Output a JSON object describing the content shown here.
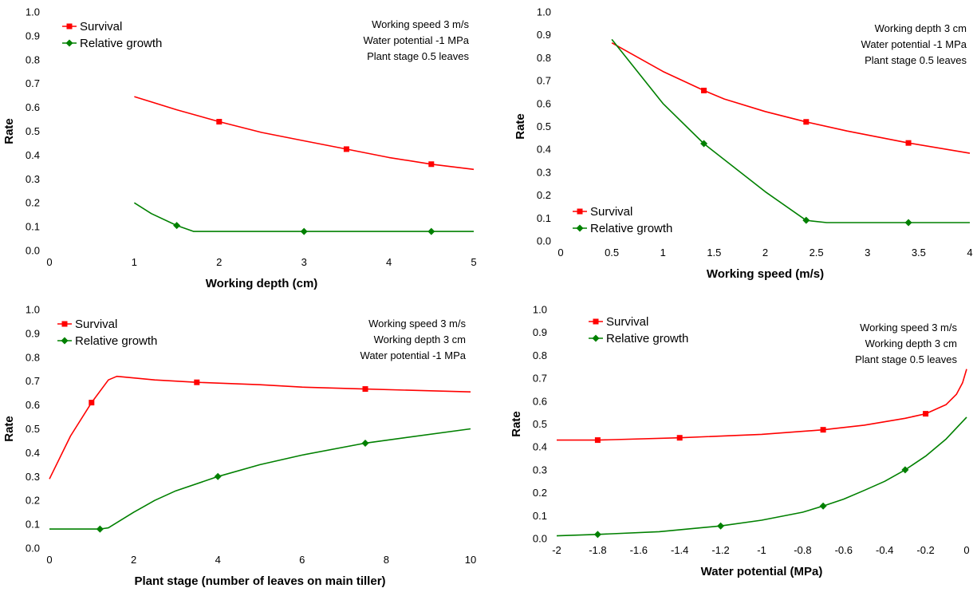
{
  "chart_data": [
    {
      "type": "line",
      "xlabel": "Working depth (cm)",
      "ylabel": "Rate",
      "xlim": [
        0,
        5
      ],
      "ylim": [
        0,
        1.0
      ],
      "xticks": [
        "0",
        "1",
        "2",
        "3",
        "4",
        "5"
      ],
      "yticks": [
        "0.0",
        "0.1",
        "0.2",
        "0.3",
        "0.4",
        "0.5",
        "0.6",
        "0.7",
        "0.8",
        "0.9",
        "1.0"
      ],
      "grid": false,
      "legend_position": "top-left",
      "annotations": [
        "Working speed 3 m/s",
        "Water potential -1 MPa",
        "Plant stage 0.5 leaves"
      ],
      "series": [
        {
          "name": "Survival",
          "color": "#ff0000",
          "marker": "square",
          "x": [
            1,
            1.5,
            2,
            2.5,
            3,
            3.5,
            4,
            4.5,
            5
          ],
          "y": [
            0.645,
            0.59,
            0.54,
            0.495,
            0.46,
            0.425,
            0.39,
            0.362,
            0.34
          ],
          "markers": [
            [
              2,
              0.54
            ],
            [
              3.5,
              0.425
            ],
            [
              4.5,
              0.362
            ]
          ]
        },
        {
          "name": "Relative growth",
          "color": "#008000",
          "marker": "diamond",
          "x": [
            1,
            1.2,
            1.5,
            1.7,
            5
          ],
          "y": [
            0.2,
            0.155,
            0.105,
            0.08,
            0.08
          ],
          "markers": [
            [
              1.5,
              0.105
            ],
            [
              3,
              0.08
            ],
            [
              4.5,
              0.08
            ]
          ]
        }
      ]
    },
    {
      "type": "line",
      "xlabel": "Working speed (m/s)",
      "ylabel": "Rate",
      "xlim": [
        0,
        4
      ],
      "ylim": [
        0,
        1.0
      ],
      "xticks": [
        "0",
        "0.5",
        "1",
        "1.5",
        "2",
        "2.5",
        "3",
        "3.5",
        "4"
      ],
      "yticks": [
        "0.0",
        "0.1",
        "0.2",
        "0.3",
        "0.4",
        "0.5",
        "0.6",
        "0.7",
        "0.8",
        "0.9",
        "1.0"
      ],
      "grid": false,
      "legend_position": "bottom-left",
      "annotations": [
        "Working depth 3 cm",
        "Water potential -1 MPa",
        "Plant stage 0.5 leaves"
      ],
      "series": [
        {
          "name": "Survival",
          "color": "#ff0000",
          "marker": "square",
          "x": [
            0.5,
            1,
            1.4,
            1.6,
            2,
            2.4,
            2.8,
            3.4,
            4
          ],
          "y": [
            0.865,
            0.74,
            0.657,
            0.62,
            0.565,
            0.52,
            0.48,
            0.428,
            0.383
          ],
          "markers": [
            [
              1.4,
              0.657
            ],
            [
              2.4,
              0.52
            ],
            [
              3.4,
              0.428
            ]
          ]
        },
        {
          "name": "Relative growth",
          "color": "#008000",
          "marker": "diamond",
          "x": [
            0.5,
            1,
            1.4,
            2,
            2.4,
            2.6,
            4
          ],
          "y": [
            0.88,
            0.6,
            0.425,
            0.215,
            0.09,
            0.08,
            0.08
          ],
          "markers": [
            [
              1.4,
              0.425
            ],
            [
              2.4,
              0.09
            ],
            [
              3.4,
              0.08
            ]
          ]
        }
      ]
    },
    {
      "type": "line",
      "xlabel": "Plant stage (number of leaves on main tiller)",
      "ylabel": "Rate",
      "xlim": [
        0,
        10
      ],
      "ylim": [
        0,
        1.0
      ],
      "xticks": [
        "0",
        "2",
        "4",
        "6",
        "8",
        "10"
      ],
      "yticks": [
        "0.0",
        "0.1",
        "0.2",
        "0.3",
        "0.4",
        "0.5",
        "0.6",
        "0.7",
        "0.8",
        "0.9",
        "1.0"
      ],
      "grid": false,
      "legend_position": "top-left",
      "annotations": [
        "Working speed 3 m/s",
        "Working depth 3 cm",
        "Water potential -1 MPa"
      ],
      "series": [
        {
          "name": "Survival",
          "color": "#ff0000",
          "marker": "square",
          "x": [
            0,
            0.5,
            1,
            1.4,
            1.6,
            2.5,
            3.5,
            5,
            6,
            7.5,
            10
          ],
          "y": [
            0.29,
            0.47,
            0.61,
            0.705,
            0.72,
            0.705,
            0.695,
            0.685,
            0.675,
            0.667,
            0.655
          ],
          "markers": [
            [
              1,
              0.61
            ],
            [
              3.5,
              0.695
            ],
            [
              7.5,
              0.667
            ]
          ]
        },
        {
          "name": "Relative growth",
          "color": "#008000",
          "marker": "diamond",
          "x": [
            0,
            1.2,
            1.4,
            2,
            2.5,
            3,
            4,
            5,
            6,
            7.5,
            10
          ],
          "y": [
            0.08,
            0.08,
            0.085,
            0.15,
            0.2,
            0.24,
            0.3,
            0.35,
            0.39,
            0.44,
            0.5
          ],
          "markers": [
            [
              1.2,
              0.08
            ],
            [
              4,
              0.3
            ],
            [
              7.5,
              0.44
            ]
          ]
        }
      ]
    },
    {
      "type": "line",
      "xlabel": "Water potential (MPa)",
      "ylabel": "Rate",
      "xlim": [
        -2,
        0
      ],
      "ylim": [
        0,
        1.0
      ],
      "xticks": [
        "-2",
        "-1.8",
        "-1.6",
        "-1.4",
        "-1.2",
        "-1",
        "-0.8",
        "-0.6",
        "-0.4",
        "-0.2",
        "0"
      ],
      "yticks": [
        "0.0",
        "0.1",
        "0.2",
        "0.3",
        "0.4",
        "0.5",
        "0.6",
        "0.7",
        "0.8",
        "0.9",
        "1.0"
      ],
      "grid": false,
      "legend_position": "top-left",
      "annotations": [
        "Working speed 3 m/s",
        "Working depth 3 cm",
        "Plant stage 0.5 leaves"
      ],
      "series": [
        {
          "name": "Survival",
          "color": "#ff0000",
          "marker": "square",
          "x": [
            -2,
            -1.8,
            -1.4,
            -1,
            -0.7,
            -0.5,
            -0.3,
            -0.2,
            -0.1,
            -0.05,
            -0.02,
            0
          ],
          "y": [
            0.43,
            0.43,
            0.44,
            0.455,
            0.475,
            0.495,
            0.525,
            0.545,
            0.585,
            0.63,
            0.68,
            0.74
          ],
          "markers": [
            [
              -1.8,
              0.43
            ],
            [
              -1.4,
              0.44
            ],
            [
              -0.7,
              0.475
            ],
            [
              -0.2,
              0.545
            ]
          ]
        },
        {
          "name": "Relative growth",
          "color": "#008000",
          "marker": "diamond",
          "x": [
            -2,
            -1.8,
            -1.5,
            -1.2,
            -1,
            -0.8,
            -0.7,
            -0.6,
            -0.5,
            -0.4,
            -0.3,
            -0.2,
            -0.1,
            0
          ],
          "y": [
            0.012,
            0.018,
            0.03,
            0.055,
            0.08,
            0.115,
            0.142,
            0.172,
            0.21,
            0.25,
            0.3,
            0.36,
            0.435,
            0.53
          ],
          "markers": [
            [
              -1.8,
              0.018
            ],
            [
              -1.2,
              0.055
            ],
            [
              -0.7,
              0.142
            ],
            [
              -0.3,
              0.3
            ]
          ]
        }
      ]
    }
  ]
}
